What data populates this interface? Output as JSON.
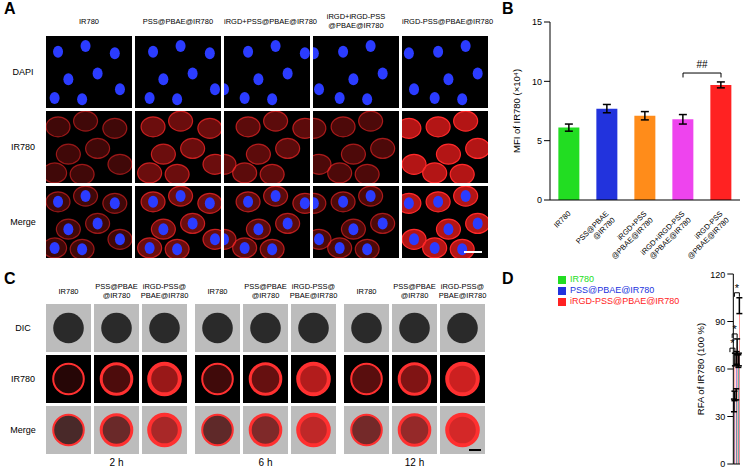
{
  "panel_A": {
    "label": "A",
    "columns": [
      [
        "IR780"
      ],
      [
        "PSS@PBAE@IR780"
      ],
      [
        "iRGD+PSS@PBAE@IR780"
      ],
      [
        "iRGD+iRGD-PSS",
        "@PBAE@IR780"
      ],
      [
        "iRGD-PSS@PBAE@IR780"
      ]
    ],
    "rows": [
      "DAPI",
      "IR780",
      "Merge"
    ]
  },
  "panel_C": {
    "label": "C",
    "groups": [
      "2 h",
      "6 h",
      "12 h"
    ],
    "columns": [
      [
        "IR780"
      ],
      [
        "PSS@PBAE",
        "@IR780"
      ],
      [
        "iRGD-PSS@",
        "PBAE@IR780"
      ]
    ],
    "rows": [
      "DIC",
      "IR780",
      "Merge"
    ]
  },
  "chart_data": [
    {
      "panel": "B",
      "type": "bar",
      "categories": [
        "IR780",
        "PSS@PBAE @IR780",
        "iRGD+PSS @PBAE@IR780",
        "iRGD+iRGD-PSS @PBAE@IR780",
        "iRGD-PSS @PBAE@IR780"
      ],
      "values": [
        6.1,
        7.7,
        7.1,
        6.8,
        9.7
      ],
      "errors": [
        0.3,
        0.35,
        0.35,
        0.4,
        0.25
      ],
      "colors": [
        "#22dd22",
        "#2233dd",
        "#ff8c1a",
        "#ee44ee",
        "#ff2222"
      ],
      "ylabel": "MFI of IR780 (×10⁴)",
      "ylim": [
        0,
        15
      ],
      "yticks": [
        0,
        5,
        10,
        15
      ],
      "annotations": [
        {
          "text": "##",
          "between": [
            "iRGD+iRGD-PSS @PBAE@IR780",
            "iRGD-PSS @PBAE@IR780"
          ]
        }
      ]
    },
    {
      "panel": "D",
      "type": "bar",
      "categories": [
        null,
        null,
        null
      ],
      "series": [
        {
          "name": "IR780",
          "color": "#22dd22",
          "values": [
            37,
            44,
            65
          ],
          "errors": [
            4,
            3.5,
            4
          ]
        },
        {
          "name": "PSS@PBAE@IR780",
          "color": "#2233dd",
          "values": [
            43,
            67,
            66
          ],
          "errors": [
            3,
            4,
            4
          ]
        },
        {
          "name": "iRGD-PSS@PBAE@IR780",
          "color": "#ff2222",
          "values": [
            66,
            74,
            100
          ],
          "errors": [
            4,
            5,
            5
          ]
        }
      ],
      "ylabel": "RFA of IR780 (100 %)",
      "ylim": [
        0,
        120
      ],
      "yticks": [
        0,
        30,
        60,
        90,
        120
      ],
      "legend": "top-left",
      "tick_labels": "y",
      "annotations": [
        {
          "text": "*",
          "between": [
            "IR780",
            "iRGD-PSS@PBAE@IR780"
          ],
          "category": 0
        },
        {
          "text": "*",
          "between": [
            "IR780",
            "iRGD-PSS@PBAE@IR780"
          ],
          "category": 1
        },
        {
          "text": "*",
          "between": [
            "IR780",
            "iRGD-PSS@PBAE@IR780"
          ],
          "category": 2
        }
      ]
    }
  ]
}
